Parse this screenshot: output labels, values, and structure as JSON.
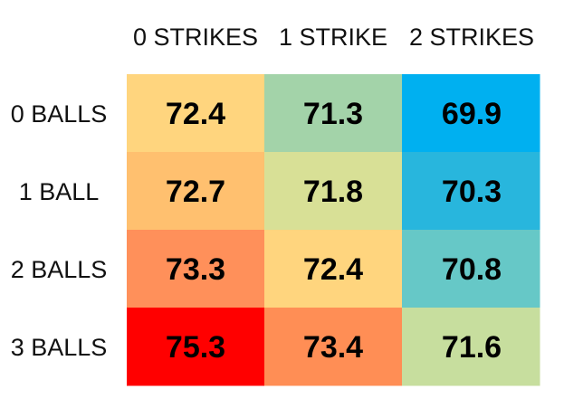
{
  "chart_data": {
    "type": "heatmap",
    "columns": [
      "0 STRIKES",
      "1 STRIKE",
      "2 STRIKES"
    ],
    "rows": [
      "0 BALLS",
      "1 BALL",
      "2 BALLS",
      "3 BALLS"
    ],
    "values": [
      [
        72.4,
        71.3,
        69.9
      ],
      [
        72.7,
        71.8,
        70.3
      ],
      [
        73.3,
        72.4,
        70.8
      ],
      [
        75.3,
        73.4,
        71.6
      ]
    ],
    "value_labels": [
      [
        "72.4",
        "71.3",
        "69.9"
      ],
      [
        "72.7",
        "71.8",
        "70.3"
      ],
      [
        "73.3",
        "72.4",
        "70.8"
      ],
      [
        "75.3",
        "73.4",
        "71.6"
      ]
    ],
    "cell_colors": [
      [
        "#FFD57E",
        "#A3D3A9",
        "#00B0F0"
      ],
      [
        "#FFC06F",
        "#D8E096",
        "#28B6DD"
      ],
      [
        "#FF905A",
        "#FFD57E",
        "#66C8C7"
      ],
      [
        "#FF0000",
        "#FF8E55",
        "#C7DE9E"
      ]
    ],
    "colormap": "red-yellow-green-blue (high to low)",
    "value_text_color": "#000000",
    "legend": "none",
    "grid": false
  }
}
